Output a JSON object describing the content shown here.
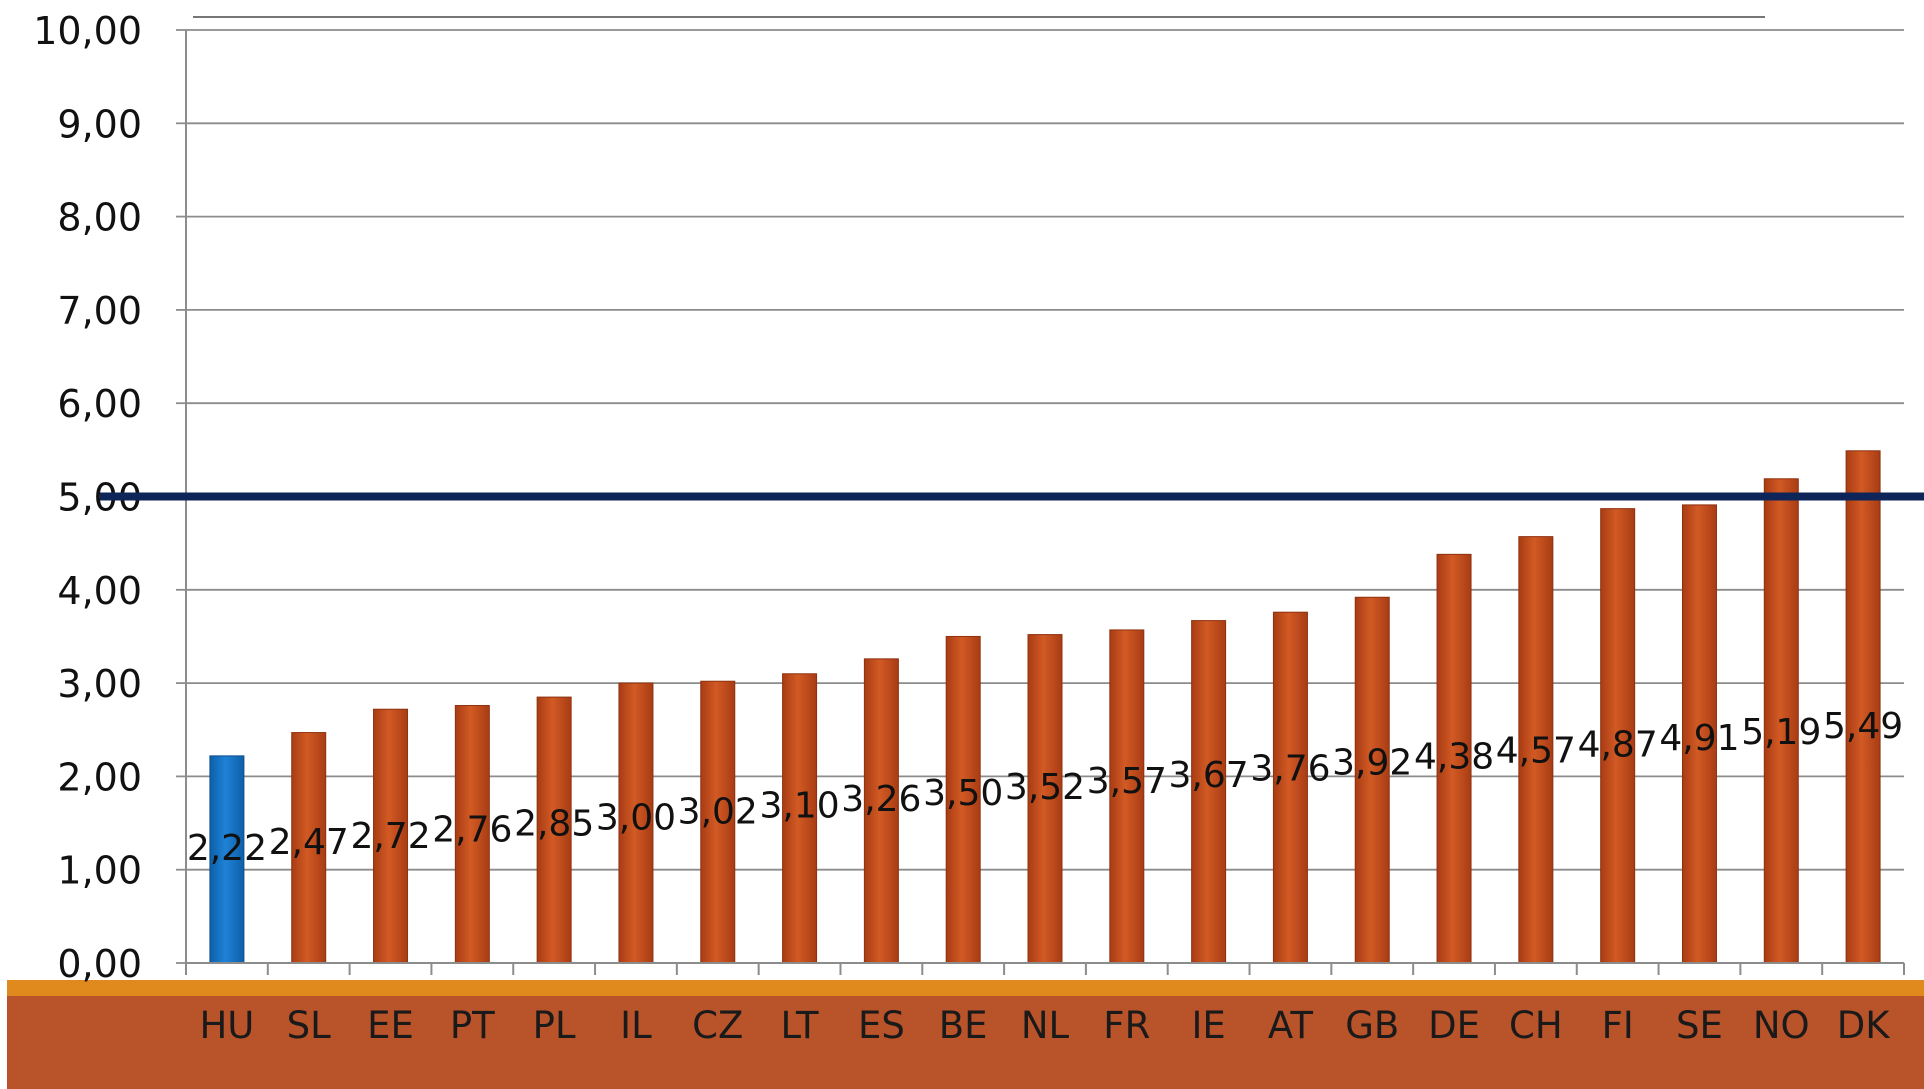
{
  "chart_data": {
    "type": "bar",
    "title": "",
    "xlabel": "",
    "ylabel": "",
    "ylim": [
      0,
      10
    ],
    "y_ticks": [
      "0,00",
      "1,00",
      "2,00",
      "3,00",
      "4,00",
      "5,00",
      "6,00",
      "7,00",
      "8,00",
      "9,00",
      "10,00"
    ],
    "categories": [
      "HU",
      "SL",
      "EE",
      "PT",
      "PL",
      "IL",
      "CZ",
      "LT",
      "ES",
      "BE",
      "NL",
      "FR",
      "IE",
      "AT",
      "GB",
      "DE",
      "CH",
      "FI",
      "SE",
      "NO",
      "DK"
    ],
    "values": [
      2.22,
      2.47,
      2.72,
      2.76,
      2.85,
      3.0,
      3.02,
      3.1,
      3.26,
      3.5,
      3.52,
      3.57,
      3.67,
      3.76,
      3.92,
      4.38,
      4.57,
      4.87,
      4.91,
      5.19,
      5.49
    ],
    "value_labels": [
      "2,22",
      "2,47",
      "2,72",
      "2,76",
      "2,85",
      "3,00",
      "3,02",
      "3,10",
      "3,26",
      "3,50",
      "3,52",
      "3,57",
      "3,67",
      "3,76",
      "3,92",
      "4,38",
      "4,57",
      "4,87",
      "4,91",
      "5,19",
      "5,49"
    ],
    "highlight_index": 0,
    "reference_line": 5.0,
    "grid": true,
    "legend": "none",
    "colors": {
      "bar": "#c8501f",
      "highlight_bar": "#1574c4",
      "reference_line": "#0d2558",
      "gridline": "#8c8c8c",
      "band": "#b9532a",
      "band_top": "#e08a1e"
    }
  }
}
